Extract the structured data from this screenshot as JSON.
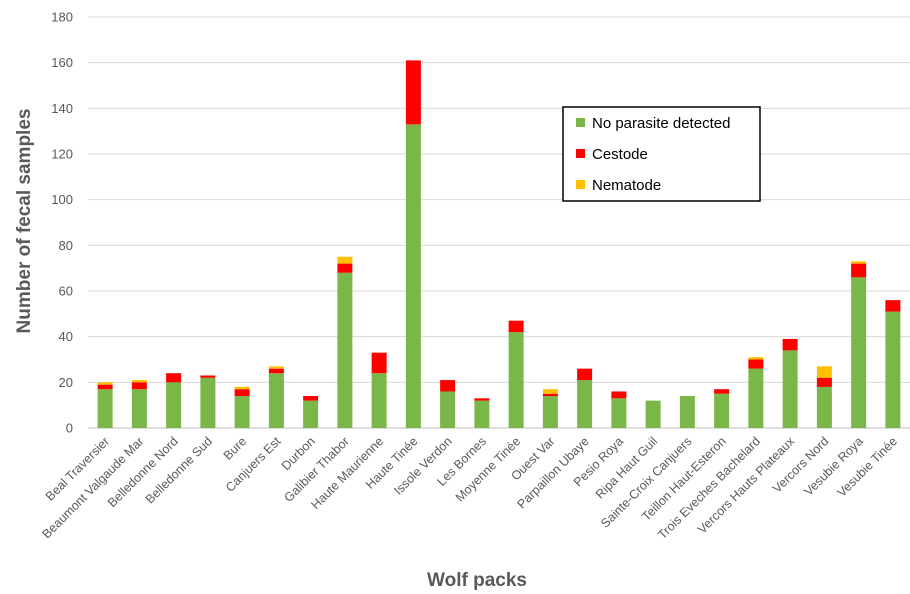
{
  "chart_data": {
    "type": "bar",
    "stacked": true,
    "xlabel": "Wolf packs",
    "ylabel": "Number of fecal samples",
    "ylim": [
      0,
      180
    ],
    "yticks": [
      0,
      20,
      40,
      60,
      80,
      100,
      120,
      140,
      160,
      180
    ],
    "grid": true,
    "legend_position": "top-right",
    "categories": [
      "Beal Traversier",
      "Beaumont Valgaude Mar",
      "Belledonne Nord",
      "Belledonne Sud",
      "Bure",
      "Canjuers Est",
      "Durbon",
      "Galibier Thabor",
      "Haute Maurienne",
      "Haute Tinée",
      "Issole Verdon",
      "Les Bornes",
      "Moyenne Tinée",
      "Ouest Var",
      "Parpaillon Ubaye",
      "Pesio Roya",
      "Ripa Haut Guil",
      "Sainte-Croix Canjuers",
      "Teillon Haut-Esteron",
      "Trois Eveches Bachelard",
      "Vercors Hauts Plateaux",
      "Vercors Nord",
      "Vesubie Roya",
      "Vesubie Tinée"
    ],
    "series": [
      {
        "name": "No parasite detected",
        "color": "#7ab648",
        "values": [
          17,
          17,
          20,
          22,
          14,
          24,
          12,
          68,
          24,
          133,
          16,
          12,
          42,
          14,
          21,
          13,
          12,
          14,
          15,
          26,
          34,
          18,
          66,
          51
        ]
      },
      {
        "name": "Cestode",
        "color": "#ff0000",
        "values": [
          2,
          3,
          4,
          1,
          3,
          2,
          2,
          4,
          9,
          28,
          5,
          1,
          5,
          1,
          5,
          3,
          0,
          0,
          2,
          4,
          5,
          4,
          6,
          5
        ]
      },
      {
        "name": "Nematode",
        "color": "#ffc000",
        "values": [
          1,
          1,
          0,
          0,
          1,
          1,
          0,
          3,
          0,
          0,
          0,
          0,
          0,
          2,
          0,
          0,
          0,
          0,
          0,
          1,
          0,
          5,
          1,
          0
        ]
      }
    ]
  }
}
